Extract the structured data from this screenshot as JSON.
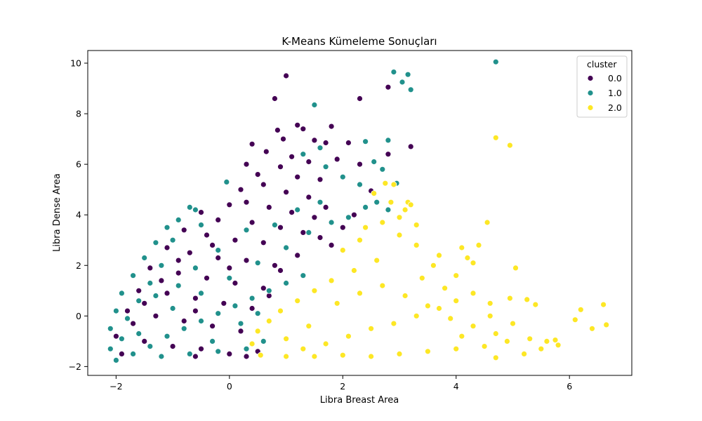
{
  "chart_data": {
    "type": "scatter",
    "title": "K-Means Kümeleme Sonuçları",
    "xlabel": "Libra Breast Area",
    "ylabel": "Libra Dense Area",
    "xlim": [
      -2.5,
      7.1
    ],
    "ylim": [
      -2.35,
      10.5
    ],
    "x_ticks": [
      -2,
      0,
      2,
      4,
      6
    ],
    "y_ticks": [
      -2,
      0,
      2,
      4,
      6,
      8,
      10
    ],
    "x_tick_labels": [
      "−2",
      "0",
      "2",
      "4",
      "6"
    ],
    "y_tick_labels": [
      "−2",
      "0",
      "2",
      "4",
      "6",
      "8",
      "10"
    ],
    "grid": false,
    "legend": {
      "title": "cluster",
      "placement": "top-right",
      "entries": [
        "0.0",
        "1.0",
        "2.0"
      ]
    },
    "series": [
      {
        "name": "0.0",
        "color": "#440154",
        "points": [
          [
            1.0,
            9.5
          ],
          [
            0.8,
            8.6
          ],
          [
            2.3,
            8.6
          ],
          [
            2.8,
            9.05
          ],
          [
            3.2,
            6.7
          ],
          [
            1.2,
            7.55
          ],
          [
            1.3,
            7.4
          ],
          [
            0.85,
            7.35
          ],
          [
            1.8,
            7.5
          ],
          [
            0.95,
            7.0
          ],
          [
            1.5,
            6.95
          ],
          [
            0.4,
            6.8
          ],
          [
            1.7,
            6.85
          ],
          [
            2.1,
            6.85
          ],
          [
            2.8,
            6.4
          ],
          [
            0.65,
            6.5
          ],
          [
            1.1,
            6.3
          ],
          [
            1.4,
            6.1
          ],
          [
            0.3,
            6.0
          ],
          [
            1.9,
            6.2
          ],
          [
            2.3,
            6.0
          ],
          [
            0.9,
            5.9
          ],
          [
            0.5,
            5.6
          ],
          [
            1.2,
            5.5
          ],
          [
            1.6,
            5.4
          ],
          [
            0.2,
            5.0
          ],
          [
            0.6,
            5.2
          ],
          [
            1.0,
            4.9
          ],
          [
            1.4,
            4.7
          ],
          [
            2.5,
            4.95
          ],
          [
            0.0,
            4.4
          ],
          [
            0.3,
            4.5
          ],
          [
            0.7,
            4.3
          ],
          [
            1.1,
            4.1
          ],
          [
            1.5,
            3.9
          ],
          [
            -0.5,
            4.1
          ],
          [
            -0.2,
            3.8
          ],
          [
            0.4,
            3.7
          ],
          [
            0.9,
            3.5
          ],
          [
            1.3,
            3.3
          ],
          [
            -0.8,
            3.4
          ],
          [
            -0.4,
            3.2
          ],
          [
            0.1,
            3.0
          ],
          [
            0.6,
            2.9
          ],
          [
            1.0,
            2.7
          ],
          [
            -1.1,
            2.7
          ],
          [
            -0.7,
            2.5
          ],
          [
            -0.2,
            2.3
          ],
          [
            0.3,
            2.2
          ],
          [
            0.8,
            2.0
          ],
          [
            -1.4,
            1.9
          ],
          [
            -0.9,
            1.7
          ],
          [
            -0.4,
            1.5
          ],
          [
            0.1,
            1.3
          ],
          [
            0.6,
            1.1
          ],
          [
            -1.6,
            1.0
          ],
          [
            -1.1,
            0.9
          ],
          [
            -0.6,
            0.7
          ],
          [
            -0.1,
            0.5
          ],
          [
            0.4,
            0.3
          ],
          [
            -1.8,
            0.2
          ],
          [
            -1.3,
            0.0
          ],
          [
            -0.8,
            -0.2
          ],
          [
            -0.3,
            -0.4
          ],
          [
            0.2,
            -0.6
          ],
          [
            -2.0,
            -0.8
          ],
          [
            -1.5,
            -1.0
          ],
          [
            -1.0,
            -1.2
          ],
          [
            -0.5,
            -1.3
          ],
          [
            0.0,
            -1.5
          ],
          [
            -1.9,
            -1.5
          ],
          [
            -1.2,
            -1.6
          ],
          [
            -0.6,
            -1.6
          ],
          [
            0.3,
            -1.6
          ],
          [
            0.5,
            -1.4
          ],
          [
            1.6,
            3.1
          ],
          [
            1.8,
            2.8
          ],
          [
            1.2,
            2.4
          ],
          [
            0.9,
            1.8
          ],
          [
            0.7,
            0.8
          ],
          [
            -0.3,
            2.8
          ],
          [
            -0.9,
            2.2
          ],
          [
            -1.2,
            1.4
          ],
          [
            -1.5,
            0.5
          ],
          [
            -1.7,
            -0.3
          ],
          [
            2.0,
            3.5
          ],
          [
            1.7,
            4.3
          ],
          [
            2.2,
            4.0
          ],
          [
            0.0,
            1.9
          ],
          [
            -0.6,
            0.2
          ]
        ]
      },
      {
        "name": "1.0",
        "color": "#21918c",
        "points": [
          [
            2.9,
            9.65
          ],
          [
            3.15,
            9.55
          ],
          [
            3.05,
            9.25
          ],
          [
            3.2,
            8.95
          ],
          [
            1.5,
            8.35
          ],
          [
            4.7,
            10.05
          ],
          [
            2.8,
            6.95
          ],
          [
            2.4,
            6.9
          ],
          [
            1.6,
            6.65
          ],
          [
            2.55,
            6.1
          ],
          [
            2.7,
            5.8
          ],
          [
            2.95,
            5.25
          ],
          [
            -0.05,
            5.3
          ],
          [
            1.3,
            6.4
          ],
          [
            1.7,
            5.9
          ],
          [
            2.0,
            5.5
          ],
          [
            2.3,
            5.2
          ],
          [
            2.6,
            4.5
          ],
          [
            2.4,
            4.3
          ],
          [
            2.8,
            4.2
          ],
          [
            -0.6,
            4.2
          ],
          [
            -0.7,
            4.3
          ],
          [
            -0.9,
            3.8
          ],
          [
            -1.1,
            3.5
          ],
          [
            -0.5,
            3.6
          ],
          [
            -1.3,
            2.9
          ],
          [
            -1.0,
            3.0
          ],
          [
            -1.5,
            2.3
          ],
          [
            -1.2,
            2.0
          ],
          [
            -1.7,
            1.6
          ],
          [
            -1.4,
            1.3
          ],
          [
            -1.9,
            0.9
          ],
          [
            -1.6,
            0.6
          ],
          [
            -2.0,
            0.2
          ],
          [
            -1.8,
            -0.1
          ],
          [
            -2.1,
            -0.5
          ],
          [
            -1.9,
            -0.9
          ],
          [
            -2.1,
            -1.3
          ],
          [
            -2.0,
            -1.75
          ],
          [
            -1.7,
            -1.5
          ],
          [
            -1.4,
            -1.2
          ],
          [
            -1.1,
            -0.8
          ],
          [
            -0.8,
            -0.5
          ],
          [
            -0.5,
            -0.2
          ],
          [
            -0.2,
            0.1
          ],
          [
            0.1,
            0.4
          ],
          [
            0.4,
            0.7
          ],
          [
            0.7,
            1.0
          ],
          [
            1.0,
            1.3
          ],
          [
            1.3,
            1.6
          ],
          [
            -1.2,
            -1.6
          ],
          [
            -0.7,
            -1.5
          ],
          [
            -0.2,
            -1.4
          ],
          [
            0.3,
            -1.3
          ],
          [
            0.6,
            -1.0
          ],
          [
            -1.0,
            0.3
          ],
          [
            -0.5,
            0.9
          ],
          [
            0.0,
            1.5
          ],
          [
            0.5,
            2.1
          ],
          [
            1.0,
            2.7
          ],
          [
            1.4,
            3.3
          ],
          [
            1.8,
            3.7
          ],
          [
            2.1,
            3.9
          ],
          [
            -0.2,
            2.6
          ],
          [
            -0.6,
            1.9
          ],
          [
            0.8,
            3.6
          ],
          [
            1.2,
            4.2
          ],
          [
            1.6,
            4.5
          ],
          [
            0.3,
            3.4
          ],
          [
            -1.6,
            -0.7
          ],
          [
            -1.3,
            0.8
          ],
          [
            -0.9,
            1.2
          ],
          [
            0.2,
            -0.3
          ],
          [
            0.5,
            0.1
          ],
          [
            -0.3,
            -1.0
          ]
        ]
      },
      {
        "name": "2.0",
        "color": "#fde725",
        "points": [
          [
            4.7,
            7.05
          ],
          [
            4.95,
            6.75
          ],
          [
            2.9,
            5.2
          ],
          [
            2.75,
            5.25
          ],
          [
            2.55,
            4.85
          ],
          [
            3.15,
            4.5
          ],
          [
            3.2,
            4.4
          ],
          [
            2.85,
            4.5
          ],
          [
            3.1,
            4.2
          ],
          [
            3.0,
            3.9
          ],
          [
            4.55,
            3.7
          ],
          [
            3.3,
            3.6
          ],
          [
            2.7,
            3.7
          ],
          [
            2.4,
            3.5
          ],
          [
            3.0,
            3.2
          ],
          [
            4.4,
            2.8
          ],
          [
            4.1,
            2.7
          ],
          [
            3.3,
            2.8
          ],
          [
            3.7,
            2.4
          ],
          [
            4.2,
            2.3
          ],
          [
            4.3,
            2.1
          ],
          [
            5.05,
            1.9
          ],
          [
            3.6,
            2.0
          ],
          [
            4.0,
            1.6
          ],
          [
            3.4,
            1.5
          ],
          [
            2.6,
            2.2
          ],
          [
            2.2,
            1.8
          ],
          [
            1.8,
            1.4
          ],
          [
            1.5,
            1.0
          ],
          [
            1.2,
            0.6
          ],
          [
            0.9,
            0.2
          ],
          [
            0.7,
            -0.2
          ],
          [
            0.5,
            -0.6
          ],
          [
            0.4,
            -1.1
          ],
          [
            0.55,
            -1.55
          ],
          [
            1.0,
            -1.6
          ],
          [
            1.5,
            -1.6
          ],
          [
            2.0,
            -1.55
          ],
          [
            2.5,
            -1.6
          ],
          [
            3.0,
            -1.5
          ],
          [
            3.5,
            -1.4
          ],
          [
            4.0,
            -1.3
          ],
          [
            4.5,
            -1.2
          ],
          [
            4.9,
            -1.0
          ],
          [
            5.3,
            -0.9
          ],
          [
            5.75,
            -0.95
          ],
          [
            5.8,
            -1.15
          ],
          [
            5.5,
            -1.3
          ],
          [
            5.2,
            -1.5
          ],
          [
            4.7,
            -1.65
          ],
          [
            6.1,
            -0.15
          ],
          [
            6.2,
            0.25
          ],
          [
            6.4,
            -0.5
          ],
          [
            6.6,
            0.45
          ],
          [
            6.65,
            -0.35
          ],
          [
            5.4,
            0.45
          ],
          [
            5.25,
            0.65
          ],
          [
            4.95,
            0.7
          ],
          [
            4.6,
            0.5
          ],
          [
            4.3,
            0.9
          ],
          [
            4.0,
            0.6
          ],
          [
            3.7,
            0.3
          ],
          [
            3.3,
            0.0
          ],
          [
            2.9,
            -0.3
          ],
          [
            2.5,
            -0.5
          ],
          [
            2.1,
            -0.8
          ],
          [
            1.7,
            -1.1
          ],
          [
            1.3,
            -1.3
          ],
          [
            1.9,
            0.5
          ],
          [
            2.3,
            0.9
          ],
          [
            2.7,
            1.2
          ],
          [
            3.1,
            0.8
          ],
          [
            3.5,
            0.4
          ],
          [
            3.9,
            -0.1
          ],
          [
            4.3,
            -0.4
          ],
          [
            4.7,
            -0.7
          ],
          [
            1.4,
            -0.4
          ],
          [
            1.0,
            -0.9
          ],
          [
            2.0,
            2.6
          ],
          [
            2.3,
            3.0
          ],
          [
            3.8,
            1.1
          ],
          [
            4.6,
            0.0
          ],
          [
            5.0,
            -0.3
          ],
          [
            5.6,
            -1.0
          ],
          [
            4.1,
            -0.8
          ]
        ]
      }
    ]
  }
}
